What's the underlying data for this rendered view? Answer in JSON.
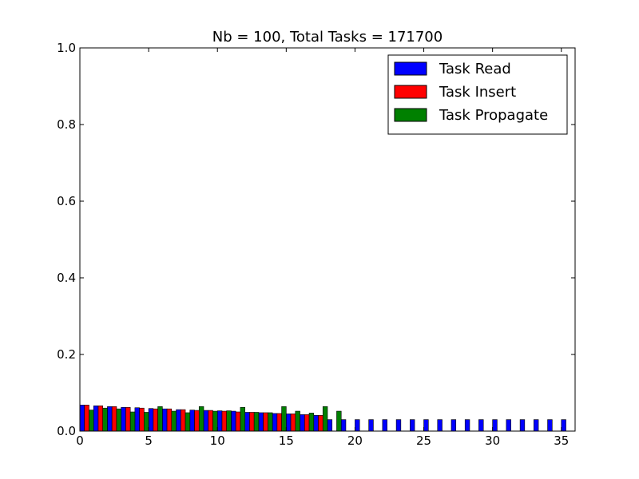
{
  "chart_data": {
    "type": "bar",
    "title": "Nb = 100, Total Tasks = 171700",
    "xlabel": "",
    "ylabel": "",
    "xlim": [
      0,
      36
    ],
    "ylim": [
      0,
      1.0
    ],
    "xticks": [
      0,
      5,
      10,
      15,
      20,
      25,
      30,
      35
    ],
    "yticks": [
      0.0,
      0.2,
      0.4,
      0.6,
      0.8,
      1.0
    ],
    "ytick_labels": [
      "0.0",
      "0.2",
      "0.4",
      "0.6",
      "0.8",
      "1.0"
    ],
    "grid": false,
    "legend_position": "top-right",
    "x": [
      0,
      1,
      2,
      3,
      4,
      5,
      6,
      7,
      8,
      9,
      10,
      11,
      12,
      13,
      14,
      15,
      16,
      17,
      18,
      19,
      20,
      21,
      22,
      23,
      24,
      25,
      26,
      27,
      28,
      29,
      30,
      31,
      32,
      33,
      34,
      35
    ],
    "series": [
      {
        "name": "Task Read",
        "color": "#0000ff",
        "values": [
          0.068,
          0.066,
          0.064,
          0.062,
          0.061,
          0.059,
          0.058,
          0.056,
          0.055,
          0.054,
          0.053,
          0.052,
          0.049,
          0.048,
          0.046,
          0.045,
          0.043,
          0.041,
          0.03,
          0.03,
          0.03,
          0.03,
          0.03,
          0.03,
          0.03,
          0.03,
          0.03,
          0.03,
          0.03,
          0.03,
          0.03,
          0.03,
          0.03,
          0.03,
          0.03,
          0.03
        ]
      },
      {
        "name": "Task Insert",
        "color": "#ff0000",
        "values": [
          0.068,
          0.066,
          0.064,
          0.062,
          0.06,
          0.058,
          0.058,
          0.056,
          0.054,
          0.054,
          0.052,
          0.05,
          0.049,
          0.048,
          0.046,
          0.045,
          0.043,
          0.041,
          0,
          0,
          0,
          0,
          0,
          0,
          0,
          0,
          0,
          0,
          0,
          0,
          0,
          0,
          0,
          0,
          0,
          0
        ]
      },
      {
        "name": "Task Propagate",
        "color": "#008000",
        "values": [
          0.055,
          0.06,
          0.058,
          0.05,
          0.049,
          0.064,
          0.052,
          0.048,
          0.064,
          0.052,
          0.053,
          0.062,
          0.049,
          0.048,
          0.064,
          0.052,
          0.047,
          0.064,
          0.052,
          0,
          0,
          0,
          0,
          0,
          0,
          0,
          0,
          0,
          0,
          0,
          0,
          0,
          0,
          0,
          0,
          0
        ]
      }
    ]
  }
}
